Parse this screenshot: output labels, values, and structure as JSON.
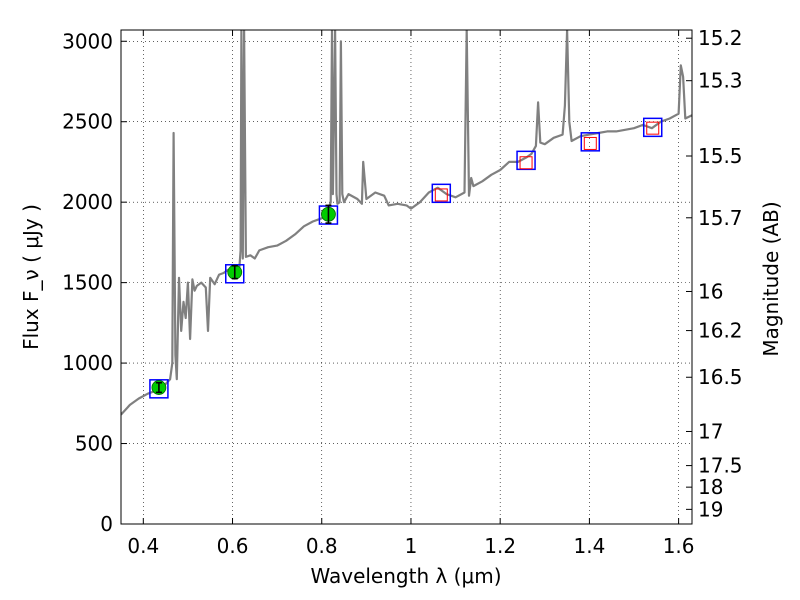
{
  "chart_data": {
    "type": "line",
    "xlabel": "Wavelength  λ (μm)",
    "ylabel": "Flux  F_ν  ( μJy )",
    "y2label": "Magnitude (AB)",
    "xlim": [
      0.35,
      1.63
    ],
    "ylim": [
      0,
      3070
    ],
    "grid": true,
    "x_ticks": [
      0.4,
      0.6,
      0.8,
      1.0,
      1.2,
      1.4,
      1.6
    ],
    "x_tick_labels": [
      "0.4",
      "0.6",
      "0.8",
      "1",
      "1.2",
      "1.4",
      "1.6"
    ],
    "y_ticks": [
      0,
      500,
      1000,
      1500,
      2000,
      2500,
      3000
    ],
    "y_tick_labels": [
      "0",
      "500",
      "1000",
      "1500",
      "2000",
      "2500",
      "3000"
    ],
    "y2_tick_labels": [
      "15.2",
      "15.3",
      "15.5",
      "15.7",
      "16",
      "16.2",
      "16.5",
      "17",
      "17.5",
      "18",
      "19"
    ],
    "y2_tick_flux": [
      3019,
      2755,
      2287,
      1903,
      1445,
      1202,
      912,
      575,
      363,
      229,
      91
    ],
    "series": [
      {
        "kind": "spectrum",
        "color": "#808080",
        "x": [
          0.35,
          0.37,
          0.39,
          0.41,
          0.43,
          0.45,
          0.46,
          0.465,
          0.468,
          0.472,
          0.475,
          0.48,
          0.485,
          0.49,
          0.495,
          0.5,
          0.505,
          0.51,
          0.515,
          0.52,
          0.53,
          0.54,
          0.545,
          0.55,
          0.56,
          0.57,
          0.58,
          0.59,
          0.6,
          0.61,
          0.615,
          0.618,
          0.62,
          0.623,
          0.626,
          0.63,
          0.64,
          0.65,
          0.66,
          0.68,
          0.7,
          0.72,
          0.74,
          0.76,
          0.78,
          0.8,
          0.81,
          0.82,
          0.823,
          0.825,
          0.83,
          0.833,
          0.835,
          0.84,
          0.843,
          0.846,
          0.85,
          0.86,
          0.88,
          0.89,
          0.893,
          0.9,
          0.92,
          0.94,
          0.95,
          0.97,
          0.99,
          1.0,
          1.02,
          1.04,
          1.06,
          1.08,
          1.1,
          1.12,
          1.125,
          1.13,
          1.135,
          1.14,
          1.16,
          1.18,
          1.2,
          1.22,
          1.24,
          1.26,
          1.27,
          1.28,
          1.285,
          1.29,
          1.3,
          1.32,
          1.34,
          1.345,
          1.35,
          1.355,
          1.36,
          1.38,
          1.4,
          1.42,
          1.44,
          1.46,
          1.48,
          1.5,
          1.52,
          1.54,
          1.56,
          1.58,
          1.6,
          1.605,
          1.61,
          1.615,
          1.63
        ],
        "y": [
          680,
          740,
          780,
          810,
          830,
          870,
          900,
          1000,
          2430,
          1050,
          900,
          1530,
          1200,
          1380,
          1280,
          1500,
          1150,
          1520,
          1450,
          1480,
          1500,
          1470,
          1200,
          1530,
          1490,
          1550,
          1560,
          1580,
          1570,
          1600,
          1580,
          1700,
          3070,
          1650,
          3070,
          1660,
          1670,
          1650,
          1700,
          1720,
          1730,
          1760,
          1800,
          1850,
          1880,
          1900,
          1920,
          2000,
          3070,
          2050,
          3070,
          2050,
          1990,
          2000,
          3000,
          2050,
          2000,
          2050,
          2020,
          1990,
          2250,
          2020,
          2060,
          2040,
          1980,
          1990,
          1980,
          1960,
          2000,
          2060,
          2090,
          2050,
          2030,
          2060,
          3070,
          2040,
          2150,
          2100,
          2130,
          2170,
          2200,
          2250,
          2250,
          2280,
          2300,
          2350,
          2620,
          2370,
          2360,
          2400,
          2420,
          2600,
          3070,
          2500,
          2380,
          2410,
          2420,
          2430,
          2440,
          2440,
          2450,
          2460,
          2480,
          2460,
          2500,
          2520,
          2550,
          2850,
          2780,
          2520,
          2540
        ]
      },
      {
        "kind": "observed",
        "color": "#00cc00",
        "x": [
          0.435,
          0.605,
          0.815
        ],
        "y": [
          848,
          1565,
          1925
        ],
        "yerr": [
          30,
          40,
          55
        ]
      },
      {
        "kind": "synthetic-photometry",
        "color": "#0000ff",
        "x": [
          0.435,
          0.605,
          0.815,
          1.068,
          1.258,
          1.402,
          1.542
        ],
        "y": [
          840,
          1555,
          1920,
          2055,
          2260,
          2375,
          2465
        ]
      },
      {
        "kind": "model-bands",
        "color": "#ff0000",
        "x": [
          1.068,
          1.258,
          1.402,
          1.542
        ],
        "y": [
          2045,
          2245,
          2365,
          2460
        ]
      }
    ]
  }
}
